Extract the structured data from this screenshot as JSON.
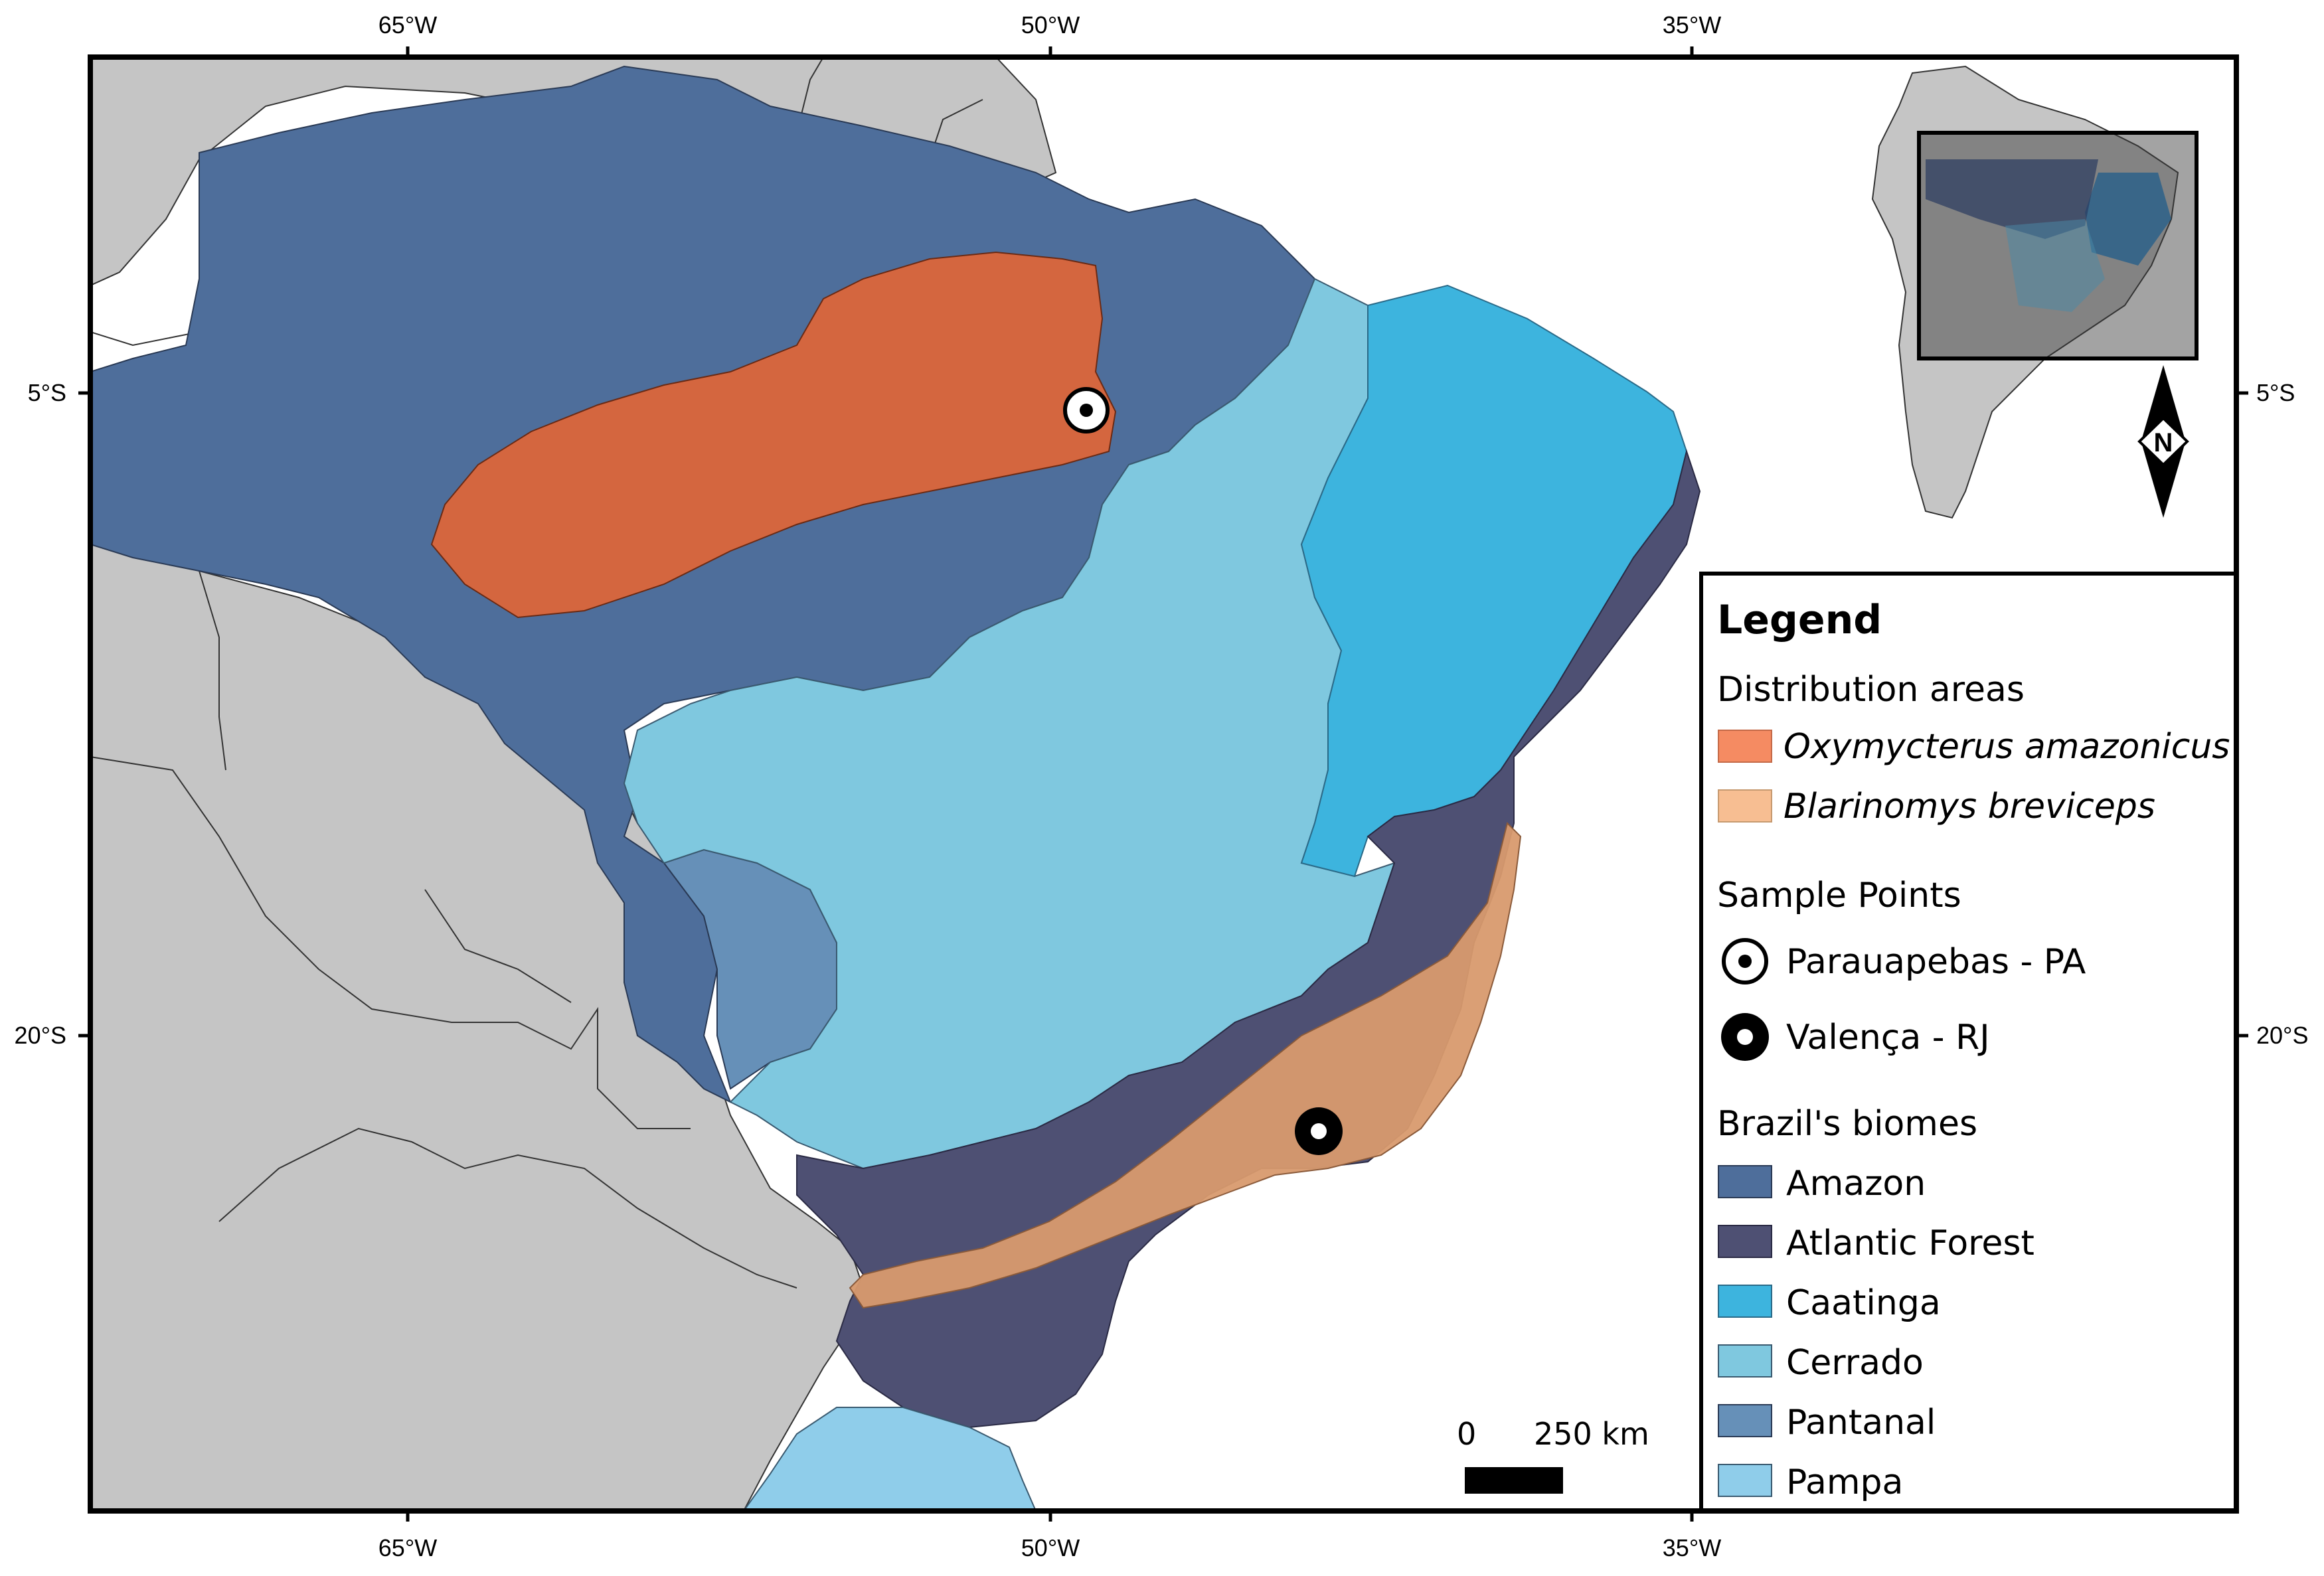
{
  "map": {
    "longitude_labels": [
      "65°W",
      "50°W",
      "35°W"
    ],
    "latitude_labels": [
      "5°S",
      "20°S"
    ]
  },
  "legend": {
    "title": "Legend",
    "distribution_heading": "Distribution areas",
    "distribution": [
      {
        "name": "Oxymycterus amazonicus",
        "color": "#d4663f",
        "legend_color": "#f58b62"
      },
      {
        "name": "Blarinomys breviceps",
        "color": "#d89a6e",
        "legend_color": "#f7be92"
      }
    ],
    "sample_heading": "Sample Points",
    "samples": [
      {
        "name": "Parauapebas - PA",
        "symbol": "ring-dot-white"
      },
      {
        "name": "Valença - RJ",
        "symbol": "ring-dot-black"
      }
    ],
    "biomes_heading": "Brazil's biomes",
    "biomes": [
      {
        "name": "Amazon",
        "color": "#4e6e9b"
      },
      {
        "name": "Atlantic Forest",
        "color": "#4e5073"
      },
      {
        "name": "Caatinga",
        "color": "#3db4de"
      },
      {
        "name": "Cerrado",
        "color": "#7fc8df"
      },
      {
        "name": "Pantanal",
        "color": "#6690b8"
      },
      {
        "name": "Pampa",
        "color": "#8fcdea"
      }
    ]
  },
  "scale_bar": {
    "start_label": "0",
    "end_label": "250 km"
  },
  "north_arrow": {
    "label": "N",
    "icon": "north-arrow-icon"
  },
  "colors": {
    "neighbor_countries": "#c5c5c5",
    "ocean": "#ffffff",
    "frame": "#000000"
  }
}
